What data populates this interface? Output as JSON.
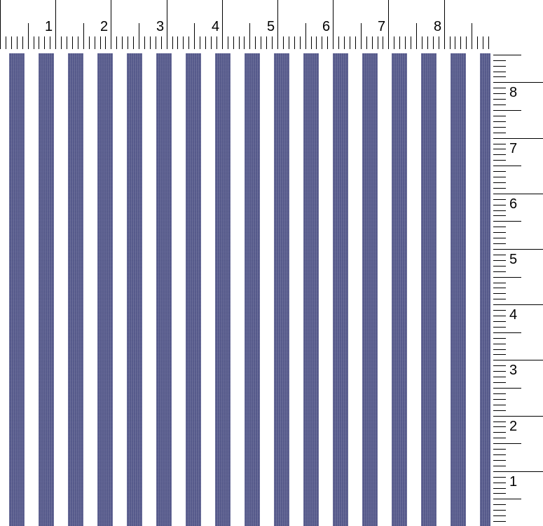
{
  "top_ruler": {
    "labels": [
      "1",
      "2",
      "3",
      "4",
      "5",
      "6",
      "7",
      "8"
    ]
  },
  "side_ruler": {
    "labels": [
      "8",
      "7",
      "6",
      "5",
      "4",
      "3",
      "2",
      "1"
    ]
  },
  "fabric": {
    "pattern": "vertical-stripes",
    "stripe_color": "#5c6091",
    "ground_color": "#ffffff",
    "stripe_count_visible": 17
  }
}
